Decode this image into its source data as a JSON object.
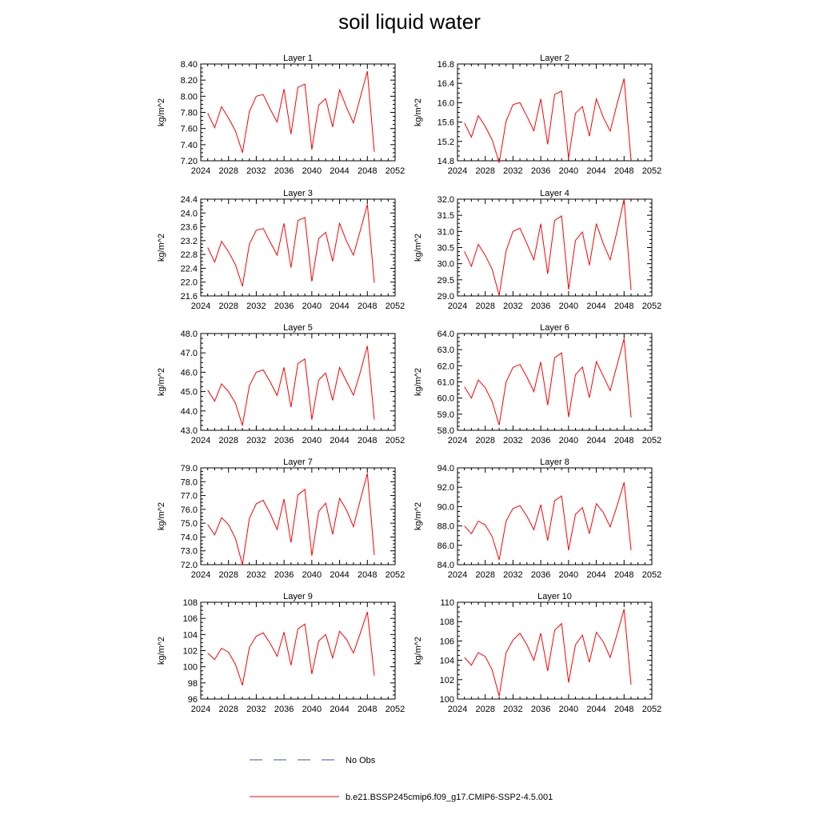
{
  "title": "soil liquid water",
  "legend": {
    "items": [
      {
        "label": "No Obs",
        "color": "#3050c8",
        "style": "dashed"
      },
      {
        "label": "b.e21.BSSP245cmip6.f09_g17.CMIP6-SSP2-4.5.001",
        "color": "#ff0000",
        "style": "solid"
      }
    ]
  },
  "chart_data": [
    {
      "type": "line",
      "title": "Layer 1",
      "ylabel": "kg/m^2",
      "xlim": [
        2024,
        2052
      ],
      "ylim": [
        7.2,
        8.4
      ],
      "xticks": [
        "2024",
        "2028",
        "2032",
        "2036",
        "2040",
        "2044",
        "2048",
        "2052"
      ],
      "yticks": [
        "7.20",
        "7.40",
        "7.60",
        "7.80",
        "8.00",
        "8.20",
        "8.40"
      ],
      "x": [
        2025,
        2026,
        2027,
        2028,
        2029,
        2030,
        2031,
        2032,
        2033,
        2034,
        2035,
        2036,
        2037,
        2038,
        2039,
        2040,
        2041,
        2042,
        2043,
        2044,
        2045,
        2046,
        2047,
        2048,
        2049
      ],
      "series": [
        {
          "values": [
            7.79,
            7.61,
            7.87,
            7.73,
            7.57,
            7.3,
            7.81,
            8.0,
            8.02,
            7.84,
            7.68,
            8.09,
            7.53,
            8.11,
            8.15,
            7.34,
            7.89,
            7.97,
            7.62,
            8.08,
            7.86,
            7.67,
            7.99,
            8.31,
            7.31
          ]
        }
      ]
    },
    {
      "type": "line",
      "title": "Layer 2",
      "ylabel": "kg/m^2",
      "xlim": [
        2024,
        2052
      ],
      "ylim": [
        14.8,
        16.8
      ],
      "xticks": [
        "2024",
        "2028",
        "2032",
        "2036",
        "2040",
        "2044",
        "2048",
        "2052"
      ],
      "yticks": [
        "14.8",
        "15.2",
        "15.6",
        "16.0",
        "16.4",
        "16.8"
      ],
      "x": [
        2025,
        2026,
        2027,
        2028,
        2029,
        2030,
        2031,
        2032,
        2033,
        2034,
        2035,
        2036,
        2037,
        2038,
        2039,
        2040,
        2041,
        2042,
        2043,
        2044,
        2045,
        2046,
        2047,
        2048,
        2049
      ],
      "series": [
        {
          "values": [
            15.58,
            15.29,
            15.73,
            15.51,
            15.23,
            14.76,
            15.62,
            15.96,
            16.0,
            15.72,
            15.42,
            16.08,
            15.14,
            16.17,
            16.24,
            14.85,
            15.78,
            15.92,
            15.31,
            16.08,
            15.7,
            15.41,
            15.98,
            16.5,
            14.81
          ]
        }
      ]
    },
    {
      "type": "line",
      "title": "Layer 3",
      "ylabel": "kg/m^2",
      "xlim": [
        2024,
        2052
      ],
      "ylim": [
        21.6,
        24.4
      ],
      "xticks": [
        "2024",
        "2028",
        "2032",
        "2036",
        "2040",
        "2044",
        "2048",
        "2052"
      ],
      "yticks": [
        "21.6",
        "22.0",
        "22.4",
        "22.8",
        "23.2",
        "23.6",
        "24.0",
        "24.4"
      ],
      "x": [
        2025,
        2026,
        2027,
        2028,
        2029,
        2030,
        2031,
        2032,
        2033,
        2034,
        2035,
        2036,
        2037,
        2038,
        2039,
        2040,
        2041,
        2042,
        2043,
        2044,
        2045,
        2046,
        2047,
        2048,
        2049
      ],
      "series": [
        {
          "values": [
            23.0,
            22.58,
            23.18,
            22.88,
            22.5,
            21.88,
            23.1,
            23.5,
            23.55,
            23.16,
            22.78,
            23.7,
            22.42,
            23.78,
            23.87,
            22.02,
            23.26,
            23.44,
            22.6,
            23.7,
            23.18,
            22.78,
            23.5,
            24.25,
            21.98
          ]
        }
      ]
    },
    {
      "type": "line",
      "title": "Layer 4",
      "ylabel": "kg/m^2",
      "xlim": [
        2024,
        2052
      ],
      "ylim": [
        29.0,
        32.0
      ],
      "xticks": [
        "2024",
        "2028",
        "2032",
        "2036",
        "2040",
        "2044",
        "2048",
        "2052"
      ],
      "yticks": [
        "29.0",
        "29.5",
        "30.0",
        "30.5",
        "31.0",
        "31.5",
        "32.0"
      ],
      "x": [
        2025,
        2026,
        2027,
        2028,
        2029,
        2030,
        2031,
        2032,
        2033,
        2034,
        2035,
        2036,
        2037,
        2038,
        2039,
        2040,
        2041,
        2042,
        2043,
        2044,
        2045,
        2046,
        2047,
        2048,
        2049
      ],
      "series": [
        {
          "values": [
            30.38,
            29.92,
            30.6,
            30.26,
            29.82,
            29.02,
            30.4,
            31.0,
            31.1,
            30.62,
            30.12,
            31.24,
            29.68,
            31.34,
            31.48,
            29.2,
            30.72,
            30.98,
            29.95,
            31.24,
            30.62,
            30.12,
            31.02,
            32.0,
            29.18
          ]
        }
      ]
    },
    {
      "type": "line",
      "title": "Layer 5",
      "ylabel": "kg/m^2",
      "xlim": [
        2024,
        2052
      ],
      "ylim": [
        43.0,
        48.0
      ],
      "xticks": [
        "2024",
        "2028",
        "2032",
        "2036",
        "2040",
        "2044",
        "2048",
        "2052"
      ],
      "yticks": [
        "43.0",
        "44.0",
        "45.0",
        "46.0",
        "47.0",
        "48.0"
      ],
      "x": [
        2025,
        2026,
        2027,
        2028,
        2029,
        2030,
        2031,
        2032,
        2033,
        2034,
        2035,
        2036,
        2037,
        2038,
        2039,
        2040,
        2041,
        2042,
        2043,
        2044,
        2045,
        2046,
        2047,
        2048,
        2049
      ],
      "series": [
        {
          "values": [
            45.08,
            44.5,
            45.4,
            45.0,
            44.4,
            43.25,
            45.3,
            46.0,
            46.12,
            45.5,
            44.8,
            46.25,
            44.2,
            46.45,
            46.68,
            43.55,
            45.6,
            45.96,
            44.55,
            46.25,
            45.52,
            44.82,
            46.02,
            47.36,
            43.55
          ]
        }
      ]
    },
    {
      "type": "line",
      "title": "Layer 6",
      "ylabel": "kg/m^2",
      "xlim": [
        2024,
        2052
      ],
      "ylim": [
        58.0,
        64.0
      ],
      "xticks": [
        "2024",
        "2028",
        "2032",
        "2036",
        "2040",
        "2044",
        "2048",
        "2052"
      ],
      "yticks": [
        "58.0",
        "59.0",
        "60.0",
        "61.0",
        "62.0",
        "63.0",
        "64.0"
      ],
      "x": [
        2025,
        2026,
        2027,
        2028,
        2029,
        2030,
        2031,
        2032,
        2033,
        2034,
        2035,
        2036,
        2037,
        2038,
        2039,
        2040,
        2041,
        2042,
        2043,
        2044,
        2045,
        2046,
        2047,
        2048,
        2049
      ],
      "series": [
        {
          "values": [
            60.7,
            60.0,
            61.12,
            60.64,
            59.78,
            58.32,
            61.0,
            61.9,
            62.08,
            61.3,
            60.4,
            62.24,
            59.56,
            62.5,
            62.8,
            58.82,
            61.44,
            61.92,
            60.02,
            62.26,
            61.36,
            60.46,
            62.06,
            63.68,
            58.8
          ]
        }
      ]
    },
    {
      "type": "line",
      "title": "Layer 7",
      "ylabel": "kg/m^2",
      "xlim": [
        2024,
        2052
      ],
      "ylim": [
        72.0,
        79.0
      ],
      "xticks": [
        "2024",
        "2028",
        "2032",
        "2036",
        "2040",
        "2044",
        "2048",
        "2052"
      ],
      "yticks": [
        "72.0",
        "73.0",
        "74.0",
        "75.0",
        "76.0",
        "77.0",
        "78.0",
        "79.0"
      ],
      "x": [
        2025,
        2026,
        2027,
        2028,
        2029,
        2030,
        2031,
        2032,
        2033,
        2034,
        2035,
        2036,
        2037,
        2038,
        2039,
        2040,
        2041,
        2042,
        2043,
        2044,
        2045,
        2046,
        2047,
        2048,
        2049
      ],
      "series": [
        {
          "values": [
            74.9,
            74.15,
            75.4,
            74.9,
            73.9,
            72.0,
            75.35,
            76.4,
            76.65,
            75.7,
            74.55,
            76.75,
            73.6,
            77.05,
            77.45,
            72.65,
            75.85,
            76.45,
            74.2,
            76.8,
            75.95,
            74.75,
            76.7,
            78.6,
            72.7
          ]
        }
      ]
    },
    {
      "type": "line",
      "title": "Layer 8",
      "ylabel": "kg/m^2",
      "xlim": [
        2024,
        2052
      ],
      "ylim": [
        84.0,
        94.0
      ],
      "xticks": [
        "2024",
        "2028",
        "2032",
        "2036",
        "2040",
        "2044",
        "2048",
        "2052"
      ],
      "yticks": [
        "84.0",
        "86.0",
        "88.0",
        "90.0",
        "92.0",
        "94.0"
      ],
      "x": [
        2025,
        2026,
        2027,
        2028,
        2029,
        2030,
        2031,
        2032,
        2033,
        2034,
        2035,
        2036,
        2037,
        2038,
        2039,
        2040,
        2041,
        2042,
        2043,
        2044,
        2045,
        2046,
        2047,
        2048,
        2049
      ],
      "series": [
        {
          "values": [
            88.0,
            87.2,
            88.5,
            88.1,
            86.9,
            84.5,
            88.5,
            89.8,
            90.1,
            89.0,
            87.6,
            90.2,
            86.5,
            90.6,
            91.1,
            85.5,
            89.2,
            89.9,
            87.2,
            90.3,
            89.4,
            87.9,
            90.1,
            92.5,
            85.5
          ]
        }
      ]
    },
    {
      "type": "line",
      "title": "Layer 9",
      "ylabel": "kg/m^2",
      "xlim": [
        2024,
        2052
      ],
      "ylim": [
        96,
        108
      ],
      "xticks": [
        "2024",
        "2028",
        "2032",
        "2036",
        "2040",
        "2044",
        "2048",
        "2052"
      ],
      "yticks": [
        "96",
        "98",
        "100",
        "102",
        "104",
        "106",
        "108"
      ],
      "x": [
        2025,
        2026,
        2027,
        2028,
        2029,
        2030,
        2031,
        2032,
        2033,
        2034,
        2035,
        2036,
        2037,
        2038,
        2039,
        2040,
        2041,
        2042,
        2043,
        2044,
        2045,
        2046,
        2047,
        2048,
        2049
      ],
      "series": [
        {
          "values": [
            101.7,
            100.9,
            102.3,
            101.8,
            100.3,
            97.7,
            102.4,
            103.8,
            104.2,
            102.9,
            101.3,
            104.3,
            100.2,
            104.7,
            105.3,
            99.1,
            103.2,
            104.0,
            101.1,
            104.4,
            103.4,
            101.7,
            104.2,
            106.8,
            98.9
          ]
        }
      ]
    },
    {
      "type": "line",
      "title": "Layer 10",
      "ylabel": "kg/m^2",
      "xlim": [
        2024,
        2052
      ],
      "ylim": [
        100,
        110
      ],
      "xticks": [
        "2024",
        "2028",
        "2032",
        "2036",
        "2040",
        "2044",
        "2048",
        "2052"
      ],
      "yticks": [
        "100",
        "102",
        "104",
        "106",
        "108",
        "110"
      ],
      "x": [
        2025,
        2026,
        2027,
        2028,
        2029,
        2030,
        2031,
        2032,
        2033,
        2034,
        2035,
        2036,
        2037,
        2038,
        2039,
        2040,
        2041,
        2042,
        2043,
        2044,
        2045,
        2046,
        2047,
        2048,
        2049
      ],
      "series": [
        {
          "values": [
            104.3,
            103.5,
            104.8,
            104.4,
            103.0,
            100.3,
            104.8,
            106.1,
            106.8,
            105.6,
            104.0,
            106.8,
            102.9,
            107.1,
            107.8,
            101.7,
            105.6,
            106.6,
            103.8,
            106.9,
            105.9,
            104.3,
            106.7,
            109.3,
            101.5
          ]
        }
      ]
    }
  ]
}
